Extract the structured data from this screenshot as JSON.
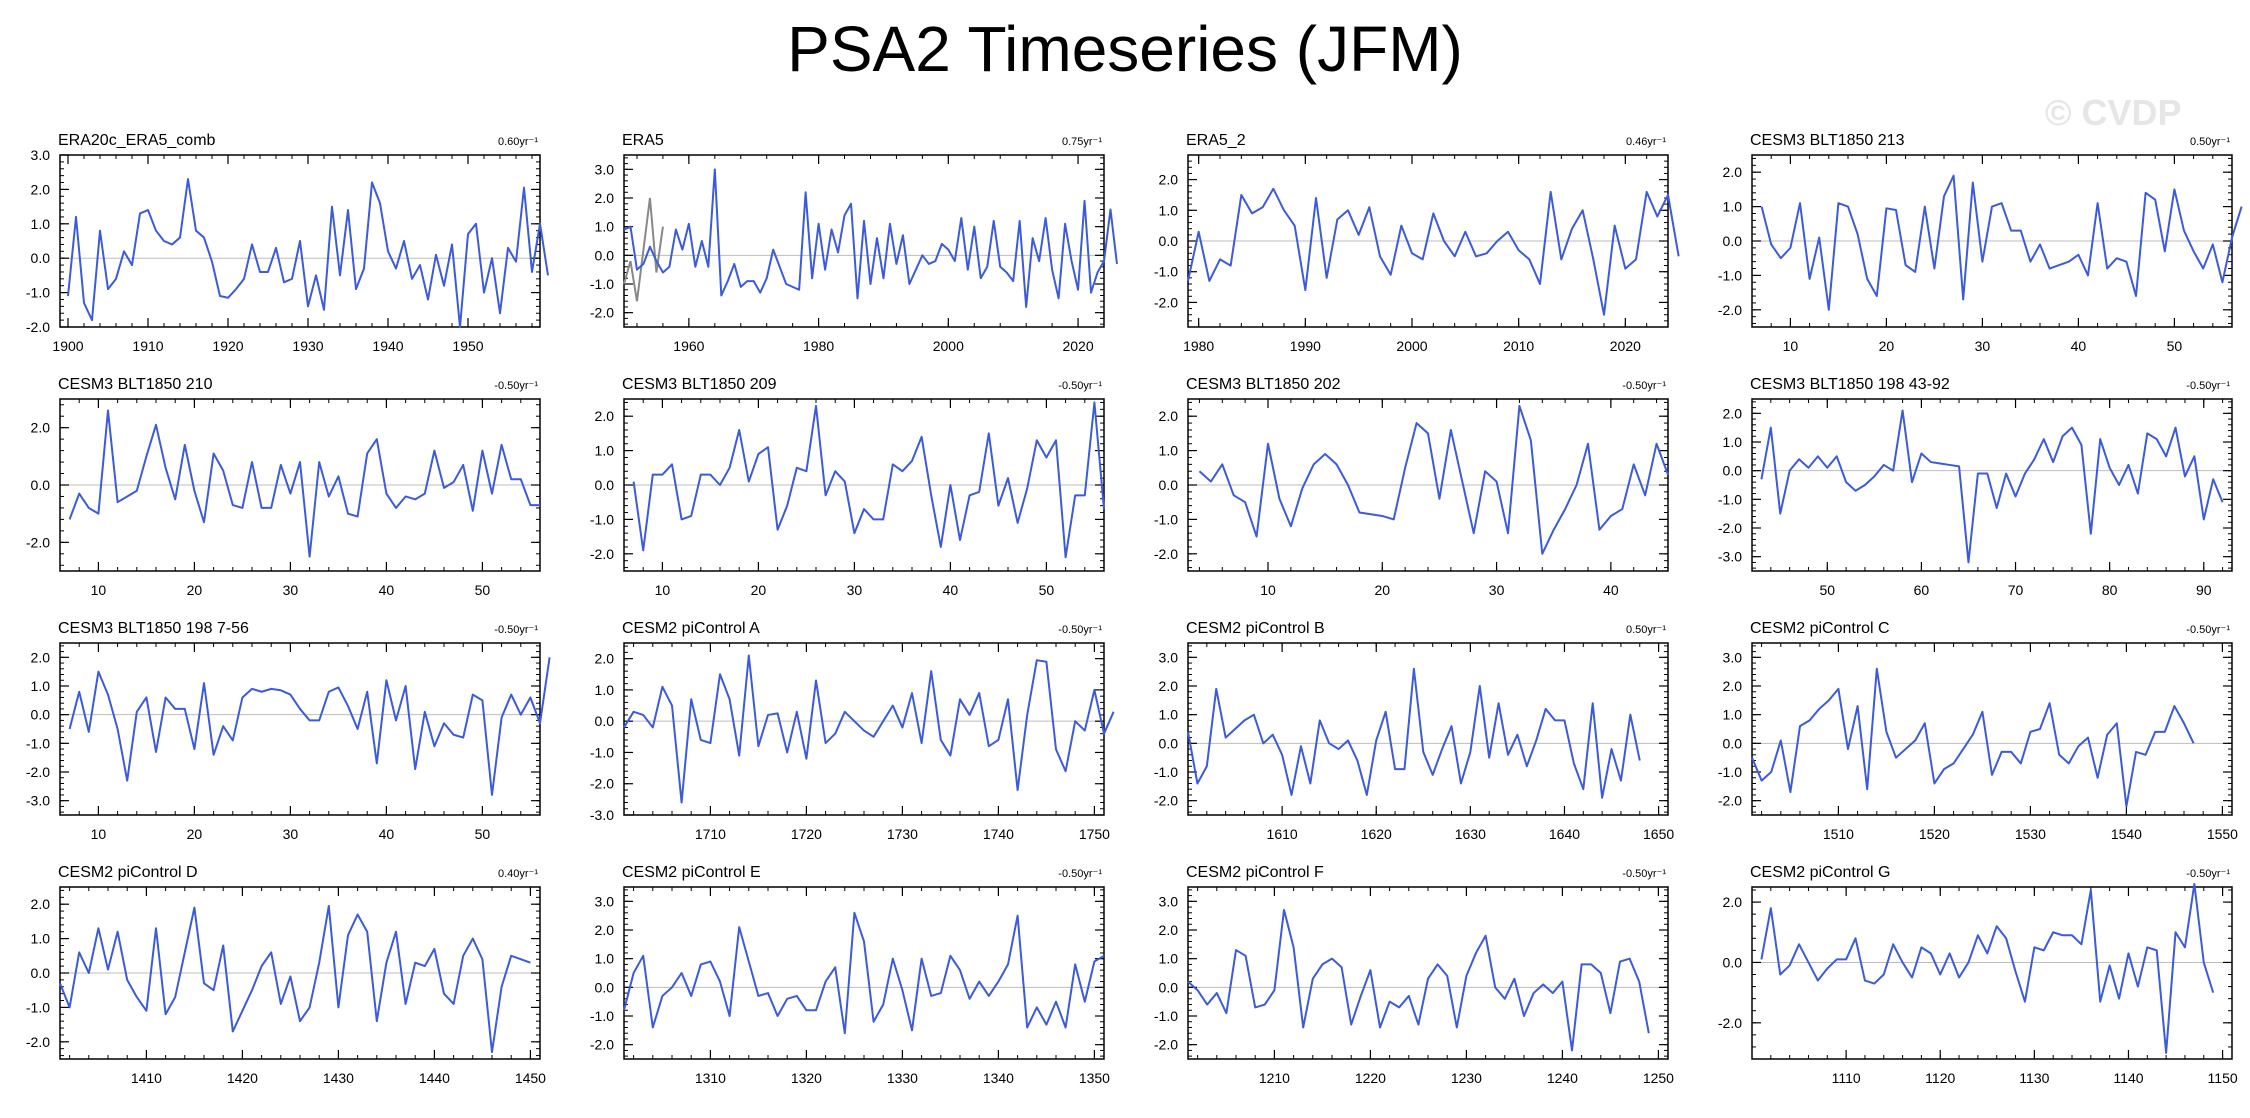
{
  "page_title": "PSA2 Timeseries (JFM)",
  "watermark": "© CVDP",
  "colors": {
    "line": "#3b5bdb",
    "overlay": "#888888",
    "zero": "#bdbdbd",
    "frame": "#000000"
  },
  "chart_data": [
    {
      "type": "line",
      "title": "ERA20c_ERA5_comb",
      "trend": "0.60yr⁻¹",
      "xlim": [
        1899,
        1959
      ],
      "ylim": [
        -2.0,
        3.0
      ],
      "yticks": [
        -2.0,
        -1.0,
        0.0,
        1.0,
        2.0,
        3.0
      ],
      "xticks": [
        1900,
        1910,
        1920,
        1930,
        1940,
        1950
      ],
      "x_start": 1900,
      "x_step": 1,
      "values": [
        -1.1,
        1.2,
        -1.3,
        -1.8,
        0.8,
        -0.9,
        -0.6,
        0.2,
        -0.2,
        1.3,
        1.4,
        0.8,
        0.5,
        0.4,
        0.6,
        2.3,
        0.8,
        0.6,
        -0.1,
        -1.1,
        -1.15,
        -0.9,
        -0.6,
        0.4,
        -0.4,
        -0.4,
        0.3,
        -0.7,
        -0.6,
        0.5,
        -1.4,
        -0.5,
        -1.5,
        1.5,
        -0.5,
        1.4,
        -0.9,
        -0.3,
        2.2,
        1.6,
        0.2,
        -0.3,
        0.5,
        -0.6,
        -0.2,
        -1.2,
        0.1,
        -0.8,
        0.4,
        -2.0,
        0.7,
        1.0,
        -1.0,
        0.0,
        -1.6,
        0.3,
        -0.1,
        2.05,
        -0.4,
        1.0,
        -0.5
      ]
    },
    {
      "type": "line",
      "title": "ERA5",
      "trend": "0.75yr⁻¹",
      "xlim": [
        1950,
        2024
      ],
      "ylim": [
        -2.5,
        3.5
      ],
      "yticks": [
        -2.0,
        -1.0,
        0.0,
        1.0,
        2.0,
        3.0
      ],
      "xticks": [
        1960,
        1980,
        2000,
        2020
      ],
      "x_start": 1950,
      "x_step": 1,
      "values": [
        0.9,
        1.0,
        -0.5,
        -0.3,
        0.3,
        -0.2,
        -0.6,
        -0.4,
        0.9,
        0.2,
        1.1,
        -0.4,
        0.5,
        -0.4,
        3.0,
        -1.4,
        -0.9,
        -0.3,
        -1.1,
        -0.9,
        -0.9,
        -1.3,
        -0.8,
        0.2,
        -0.4,
        -1.0,
        -1.1,
        -1.2,
        2.2,
        -0.8,
        1.1,
        -0.5,
        0.9,
        0.1,
        1.4,
        1.8,
        -1.5,
        1.2,
        -1.0,
        0.6,
        -0.8,
        1.1,
        -0.3,
        0.7,
        -1.0,
        -0.5,
        0.0,
        -0.3,
        -0.2,
        0.4,
        0.2,
        -0.2,
        1.3,
        -0.5,
        1.0,
        -0.8,
        -0.4,
        1.2,
        -0.4,
        -0.6,
        -0.9,
        1.2,
        -1.8,
        0.6,
        -0.2,
        1.3,
        -0.5,
        -1.5,
        1.1,
        -0.2,
        -1.2,
        1.9,
        -1.3,
        -0.6,
        -0.2,
        1.6,
        -0.3
      ],
      "overlay_start": 1950,
      "overlay_values": [
        -1.0,
        -0.2,
        -1.6,
        0.2,
        2.0,
        -0.6,
        1.0
      ]
    },
    {
      "type": "line",
      "title": "ERA5_2",
      "trend": "0.46yr⁻¹",
      "xlim": [
        1979,
        2024
      ],
      "ylim": [
        -2.8,
        2.8
      ],
      "yticks": [
        -2.0,
        -1.0,
        0.0,
        1.0,
        2.0
      ],
      "xticks": [
        1980,
        1990,
        2000,
        2010,
        2020
      ],
      "x_start": 1979,
      "x_step": 1,
      "values": [
        -1.3,
        0.3,
        -1.3,
        -0.6,
        -0.8,
        1.5,
        0.9,
        1.1,
        1.7,
        1.0,
        0.5,
        -1.6,
        1.4,
        -1.2,
        0.7,
        1.0,
        0.2,
        1.1,
        -0.5,
        -1.1,
        0.5,
        -0.4,
        -0.6,
        0.9,
        0.0,
        -0.5,
        0.3,
        -0.5,
        -0.4,
        0.0,
        0.3,
        -0.3,
        -0.6,
        -1.4,
        1.6,
        -0.6,
        0.4,
        1.0,
        -0.6,
        -2.4,
        0.5,
        -0.9,
        -0.6,
        1.6,
        0.8,
        1.5,
        -0.5
      ]
    },
    {
      "type": "line",
      "title": "CESM3 BLT1850 213",
      "trend": "0.50yr⁻¹",
      "xlim": [
        6,
        56
      ],
      "ylim": [
        -2.5,
        2.5
      ],
      "yticks": [
        -2.0,
        -1.0,
        0.0,
        1.0,
        2.0
      ],
      "xticks": [
        10,
        20,
        30,
        40,
        50
      ],
      "x_start": 7,
      "x_step": 1,
      "values": [
        1.0,
        -0.1,
        -0.5,
        -0.2,
        1.1,
        -1.1,
        0.1,
        -2.0,
        1.1,
        1.0,
        0.2,
        -1.1,
        -1.6,
        0.95,
        0.9,
        -0.7,
        -0.9,
        1.0,
        -0.8,
        1.3,
        1.9,
        -1.7,
        1.7,
        -0.6,
        1.0,
        1.1,
        0.3,
        0.3,
        -0.6,
        -0.1,
        -0.8,
        -0.7,
        -0.6,
        -0.4,
        -1.0,
        1.1,
        -0.8,
        -0.5,
        -0.6,
        -1.6,
        1.4,
        1.2,
        -0.3,
        1.5,
        0.3,
        -0.3,
        -0.8,
        -0.1,
        -1.2,
        0.1,
        1.0
      ]
    },
    {
      "type": "line",
      "title": "CESM3 BLT1850 210",
      "trend": "-0.50yr⁻¹",
      "xlim": [
        6,
        56
      ],
      "ylim": [
        -3.0,
        3.0
      ],
      "yticks": [
        -2.0,
        0.0,
        2.0
      ],
      "xticks": [
        10,
        20,
        30,
        40,
        50
      ],
      "x_start": 7,
      "x_step": 1,
      "values": [
        -1.2,
        -0.3,
        -0.8,
        -1.0,
        2.6,
        -0.6,
        -0.4,
        -0.2,
        1.0,
        2.1,
        0.6,
        -0.5,
        1.4,
        -0.2,
        -1.3,
        1.1,
        0.5,
        -0.7,
        -0.8,
        0.8,
        -0.8,
        -0.8,
        0.7,
        -0.3,
        0.8,
        -2.5,
        0.8,
        -0.4,
        0.3,
        -1.0,
        -1.1,
        1.1,
        1.6,
        -0.3,
        -0.8,
        -0.4,
        -0.5,
        -0.3,
        1.2,
        -0.1,
        0.1,
        0.7,
        -0.9,
        1.2,
        -0.3,
        1.4,
        0.2,
        0.2,
        -0.7,
        -0.7
      ]
    },
    {
      "type": "line",
      "title": "CESM3 BLT1850 209",
      "trend": "-0.50yr⁻¹",
      "xlim": [
        6,
        56
      ],
      "ylim": [
        -2.5,
        2.5
      ],
      "yticks": [
        -2.0,
        -1.0,
        0.0,
        1.0,
        2.0
      ],
      "xticks": [
        10,
        20,
        30,
        40,
        50
      ],
      "x_start": 7,
      "x_step": 1,
      "values": [
        0.1,
        -1.9,
        0.3,
        0.3,
        0.6,
        -1.0,
        -0.9,
        0.3,
        0.3,
        0.0,
        0.5,
        1.6,
        0.1,
        0.9,
        1.1,
        -1.3,
        -0.6,
        0.5,
        0.4,
        2.3,
        -0.3,
        0.4,
        0.1,
        -1.4,
        -0.7,
        -1.0,
        -1.0,
        0.6,
        0.4,
        0.7,
        1.4,
        -0.3,
        -1.8,
        0.0,
        -1.6,
        -0.3,
        -0.2,
        1.5,
        -0.6,
        0.2,
        -1.1,
        -0.1,
        1.3,
        0.8,
        1.3,
        -2.1,
        -0.3,
        -0.3,
        2.4,
        -0.7
      ]
    },
    {
      "type": "line",
      "title": "CESM3 BLT1850 202",
      "trend": "-0.50yr⁻¹",
      "xlim": [
        3,
        45
      ],
      "ylim": [
        -2.5,
        2.5
      ],
      "yticks": [
        -2.0,
        -1.0,
        0.0,
        1.0,
        2.0
      ],
      "xticks": [
        10,
        20,
        30,
        40
      ],
      "x_start": 4,
      "x_step": 1,
      "values": [
        0.4,
        0.1,
        0.6,
        -0.3,
        -0.5,
        -1.5,
        1.2,
        -0.4,
        -1.2,
        -0.1,
        0.6,
        0.9,
        0.6,
        0.0,
        -0.8,
        -0.85,
        -0.9,
        -1.0,
        0.5,
        1.8,
        1.5,
        -0.4,
        1.6,
        0.1,
        -1.4,
        0.4,
        0.1,
        -1.4,
        2.3,
        1.3,
        -2.0,
        -1.3,
        -0.7,
        0.0,
        1.2,
        -1.3,
        -0.9,
        -0.7,
        0.6,
        -0.3,
        1.2,
        0.3
      ]
    },
    {
      "type": "line",
      "title": "CESM3 BLT1850 198 43-92",
      "trend": "-0.50yr⁻¹",
      "xlim": [
        42,
        93
      ],
      "ylim": [
        -3.5,
        2.5
      ],
      "yticks": [
        -3.0,
        -2.0,
        -1.0,
        0.0,
        1.0,
        2.0
      ],
      "xticks": [
        50,
        60,
        70,
        80,
        90
      ],
      "x_start": 43,
      "x_step": 1,
      "values": [
        -0.3,
        1.5,
        -1.5,
        0.0,
        0.4,
        0.1,
        0.5,
        0.1,
        0.5,
        -0.4,
        -0.7,
        -0.5,
        -0.2,
        0.2,
        0.0,
        2.1,
        -0.4,
        0.6,
        0.3,
        0.25,
        0.2,
        0.15,
        -3.2,
        -0.1,
        -0.1,
        -1.3,
        -0.1,
        -0.9,
        -0.1,
        0.4,
        1.1,
        0.3,
        1.2,
        1.5,
        0.9,
        -2.2,
        1.1,
        0.1,
        -0.5,
        0.2,
        -0.8,
        1.3,
        1.1,
        0.5,
        1.5,
        -0.2,
        0.5,
        -1.7,
        -0.3,
        -1.1
      ]
    },
    {
      "type": "line",
      "title": "CESM3 BLT1850 198 7-56",
      "trend": "-0.50yr⁻¹",
      "xlim": [
        6,
        56
      ],
      "ylim": [
        -3.5,
        2.5
      ],
      "yticks": [
        -3.0,
        -2.0,
        -1.0,
        0.0,
        1.0,
        2.0
      ],
      "xticks": [
        10,
        20,
        30,
        40,
        50
      ],
      "x_start": 7,
      "x_step": 1,
      "values": [
        -0.5,
        0.8,
        -0.6,
        1.5,
        0.7,
        -0.5,
        -2.3,
        0.1,
        0.6,
        -1.3,
        0.6,
        0.2,
        0.2,
        -1.2,
        1.1,
        -1.4,
        -0.4,
        -0.9,
        0.6,
        0.9,
        0.8,
        0.9,
        0.85,
        0.7,
        0.2,
        -0.2,
        -0.2,
        0.8,
        0.95,
        0.3,
        -0.5,
        0.8,
        -1.7,
        1.2,
        -0.2,
        1.0,
        -1.9,
        0.1,
        -1.1,
        -0.3,
        -0.7,
        -0.8,
        0.7,
        0.5,
        -2.8,
        -0.1,
        0.7,
        0.0,
        0.6,
        -0.3,
        2.0
      ]
    },
    {
      "type": "line",
      "title": "CESM2 piControl A",
      "trend": "-0.50yr⁻¹",
      "xlim": [
        1701,
        1751
      ],
      "ylim": [
        -3.0,
        2.5
      ],
      "yticks": [
        -3.0,
        -2.0,
        -1.0,
        0.0,
        1.0,
        2.0
      ],
      "xticks": [
        1710,
        1720,
        1730,
        1740,
        1750
      ],
      "x_start": 1701,
      "x_step": 1,
      "values": [
        -0.2,
        0.3,
        0.2,
        -0.2,
        1.1,
        0.5,
        -2.6,
        0.7,
        -0.6,
        -0.7,
        1.5,
        0.7,
        -1.1,
        2.1,
        -0.8,
        0.2,
        0.25,
        -1.0,
        0.3,
        -1.2,
        1.3,
        -0.7,
        -0.4,
        0.3,
        0.0,
        -0.3,
        -0.5,
        0.0,
        0.5,
        -0.2,
        0.9,
        -0.7,
        1.6,
        -0.6,
        -1.1,
        0.7,
        0.2,
        0.9,
        -0.8,
        -0.6,
        0.7,
        -2.2,
        0.2,
        1.95,
        1.9,
        -0.9,
        -1.6,
        0.0,
        -0.3,
        1.0,
        -0.4,
        0.3
      ]
    },
    {
      "type": "line",
      "title": "CESM2 piControl B",
      "trend": "0.50yr⁻¹",
      "xlim": [
        1600,
        1651
      ],
      "ylim": [
        -2.5,
        3.5
      ],
      "yticks": [
        -2.0,
        -1.0,
        0.0,
        1.0,
        2.0,
        3.0
      ],
      "xticks": [
        1610,
        1620,
        1630,
        1640,
        1650
      ],
      "x_start": 1600,
      "x_step": 1,
      "values": [
        0.4,
        -1.4,
        -0.8,
        1.9,
        0.2,
        0.5,
        0.8,
        1.0,
        0.0,
        0.3,
        -0.4,
        -1.8,
        -0.1,
        -1.4,
        0.8,
        0.0,
        -0.2,
        0.1,
        -0.6,
        -1.8,
        0.1,
        1.1,
        -0.9,
        -0.9,
        2.6,
        -0.3,
        -1.1,
        -0.2,
        0.6,
        -1.4,
        -0.3,
        2.0,
        -0.5,
        1.4,
        -0.4,
        0.3,
        -0.8,
        0.1,
        1.2,
        0.8,
        0.8,
        -0.7,
        -1.6,
        1.4,
        -1.9,
        -0.2,
        -1.3,
        1.0,
        -0.6
      ]
    },
    {
      "type": "line",
      "title": "CESM2 piControl C",
      "trend": "-0.50yr⁻¹",
      "xlim": [
        1501,
        1551
      ],
      "ylim": [
        -2.5,
        3.5
      ],
      "yticks": [
        -2.0,
        -1.0,
        0.0,
        1.0,
        2.0,
        3.0
      ],
      "xticks": [
        1510,
        1520,
        1530,
        1540,
        1550
      ],
      "x_start": 1501,
      "x_step": 1,
      "values": [
        -0.5,
        -1.3,
        -1.0,
        0.1,
        -1.7,
        0.6,
        0.8,
        1.2,
        1.5,
        1.9,
        -0.2,
        1.3,
        -1.6,
        2.6,
        0.4,
        -0.5,
        -0.2,
        0.1,
        0.7,
        -1.4,
        -0.9,
        -0.7,
        -0.2,
        0.3,
        1.1,
        -1.1,
        -0.3,
        -0.3,
        -0.7,
        0.4,
        0.5,
        1.4,
        -0.4,
        -0.7,
        -0.1,
        0.2,
        -1.2,
        0.3,
        0.7,
        -2.2,
        -0.3,
        -0.4,
        0.4,
        0.4,
        1.3,
        0.7,
        0.0
      ]
    },
    {
      "type": "line",
      "title": "CESM2 piControl D",
      "trend": "0.40yr⁻¹",
      "xlim": [
        1401,
        1451
      ],
      "ylim": [
        -2.5,
        2.5
      ],
      "yticks": [
        -2.0,
        -1.0,
        0.0,
        1.0,
        2.0
      ],
      "xticks": [
        1410,
        1420,
        1430,
        1440,
        1450
      ],
      "x_start": 1401,
      "x_step": 1,
      "values": [
        -0.3,
        -1.0,
        0.6,
        0.0,
        1.3,
        0.1,
        1.2,
        -0.2,
        -0.7,
        -1.1,
        1.3,
        -1.2,
        -0.7,
        0.6,
        1.9,
        -0.3,
        -0.5,
        0.8,
        -1.7,
        -1.1,
        -0.5,
        0.2,
        0.6,
        -0.9,
        -0.1,
        -1.4,
        -1.0,
        0.3,
        1.95,
        -1.0,
        1.1,
        1.7,
        1.2,
        -1.4,
        0.3,
        1.2,
        -0.9,
        0.3,
        0.2,
        0.7,
        -0.6,
        -0.9,
        0.5,
        1.0,
        0.4,
        -2.3,
        -0.4,
        0.5,
        0.4,
        0.3
      ]
    },
    {
      "type": "line",
      "title": "CESM2 piControl E",
      "trend": "-0.50yr⁻¹",
      "xlim": [
        1301,
        1351
      ],
      "ylim": [
        -2.5,
        3.5
      ],
      "yticks": [
        -2.0,
        -1.0,
        0.0,
        1.0,
        2.0,
        3.0
      ],
      "xticks": [
        1310,
        1320,
        1330,
        1340,
        1350
      ],
      "x_start": 1301,
      "x_step": 1,
      "values": [
        -0.8,
        0.5,
        1.1,
        -1.4,
        -0.3,
        0.0,
        0.5,
        -0.3,
        0.8,
        0.9,
        0.2,
        -1.0,
        2.1,
        0.9,
        -0.3,
        -0.2,
        -1.0,
        -0.4,
        -0.3,
        -0.8,
        -0.8,
        0.2,
        0.7,
        -1.6,
        2.6,
        1.6,
        -1.2,
        -0.6,
        1.0,
        -0.1,
        -1.5,
        1.0,
        -0.3,
        -0.2,
        1.1,
        0.6,
        -0.4,
        0.2,
        -0.3,
        0.2,
        0.8,
        2.5,
        -1.4,
        -0.7,
        -1.3,
        -0.5,
        -1.4,
        0.8,
        -0.5,
        0.9,
        1.1
      ]
    },
    {
      "type": "line",
      "title": "CESM2 piControl F",
      "trend": "-0.50yr⁻¹",
      "xlim": [
        1201,
        1251
      ],
      "ylim": [
        -2.5,
        3.5
      ],
      "yticks": [
        -2.0,
        -1.0,
        0.0,
        1.0,
        2.0,
        3.0
      ],
      "xticks": [
        1210,
        1220,
        1230,
        1240,
        1250
      ],
      "x_start": 1201,
      "x_step": 1,
      "values": [
        0.2,
        -0.1,
        -0.6,
        -0.2,
        -0.9,
        1.3,
        1.1,
        -0.7,
        -0.6,
        -0.1,
        2.7,
        1.4,
        -1.4,
        0.3,
        0.8,
        1.0,
        0.7,
        -1.3,
        -0.3,
        0.6,
        -1.4,
        -0.5,
        -0.7,
        -0.3,
        -1.3,
        0.3,
        0.8,
        0.4,
        -1.4,
        0.4,
        1.2,
        1.8,
        0.0,
        -0.4,
        0.3,
        -1.0,
        -0.2,
        0.1,
        -0.2,
        0.2,
        -2.2,
        0.8,
        0.8,
        0.5,
        -0.9,
        0.9,
        1.0,
        0.2,
        -1.6
      ]
    },
    {
      "type": "line",
      "title": "CESM2 piControl G",
      "trend": "-0.50yr⁻¹",
      "xlim": [
        1100,
        1151
      ],
      "ylim": [
        -3.2,
        2.5
      ],
      "yticks": [
        -2.0,
        0.0,
        2.0
      ],
      "xticks": [
        1110,
        1120,
        1130,
        1140,
        1150
      ],
      "x_start": 1101,
      "x_step": 1,
      "values": [
        0.1,
        1.8,
        -0.4,
        -0.1,
        0.6,
        0.0,
        -0.6,
        -0.2,
        0.1,
        0.1,
        0.8,
        -0.6,
        -0.7,
        -0.4,
        0.6,
        0.0,
        -0.5,
        0.5,
        0.3,
        -0.4,
        0.3,
        -0.5,
        0.0,
        0.9,
        0.3,
        1.2,
        0.8,
        -0.3,
        -1.3,
        0.5,
        0.4,
        1.0,
        0.9,
        0.9,
        0.6,
        2.4,
        -1.3,
        -0.1,
        -1.2,
        0.3,
        -0.8,
        0.5,
        0.4,
        -3.0,
        1.0,
        0.5,
        2.6,
        0.0,
        -1.0
      ]
    }
  ]
}
